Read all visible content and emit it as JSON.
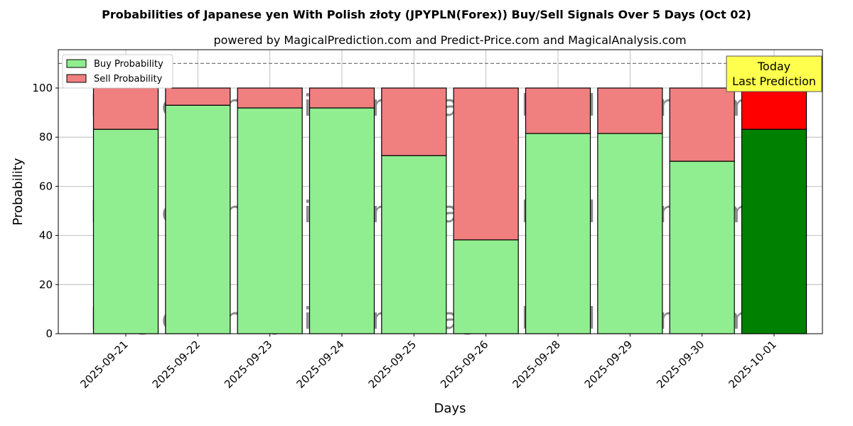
{
  "chart_data": {
    "type": "bar",
    "stacked": true,
    "title": "Probabilities of Japanese yen With Polish złoty (JPYPLN(Forex)) Buy/Sell Signals Over 5 Days (Oct 02)",
    "subtitle": "powered by MagicalPrediction.com and Predict-Price.com and MagicalAnalysis.com",
    "xlabel": "Days",
    "ylabel": "Probability",
    "ylim": [
      0,
      115.6
    ],
    "yticks": [
      0,
      20,
      40,
      60,
      80,
      100
    ],
    "grid": true,
    "categories": [
      "2025-09-21",
      "2025-09-22",
      "2025-09-23",
      "2025-09-24",
      "2025-09-25",
      "2025-09-26",
      "2025-09-28",
      "2025-09-29",
      "2025-09-30",
      "2025-10-01"
    ],
    "series": [
      {
        "name": "Buy Probability",
        "color": "#90ee90",
        "highlight_color": "#008000",
        "values": [
          83.2,
          93.0,
          91.9,
          91.9,
          72.5,
          38.2,
          81.5,
          81.5,
          70.2,
          83.2
        ]
      },
      {
        "name": "Sell Probability",
        "color": "#f08080",
        "highlight_color": "#ff0000",
        "values": [
          16.8,
          7.0,
          8.1,
          8.1,
          27.5,
          61.8,
          18.5,
          18.5,
          29.8,
          16.8
        ]
      }
    ],
    "reference_line": 110,
    "legend": "top-left",
    "annotation": {
      "line1": "Today",
      "line2": "Last Prediction",
      "color": "#ffff4d"
    },
    "watermarks": [
      "MagicalAnalysis.com",
      "MagicalPrediction.com"
    ]
  }
}
